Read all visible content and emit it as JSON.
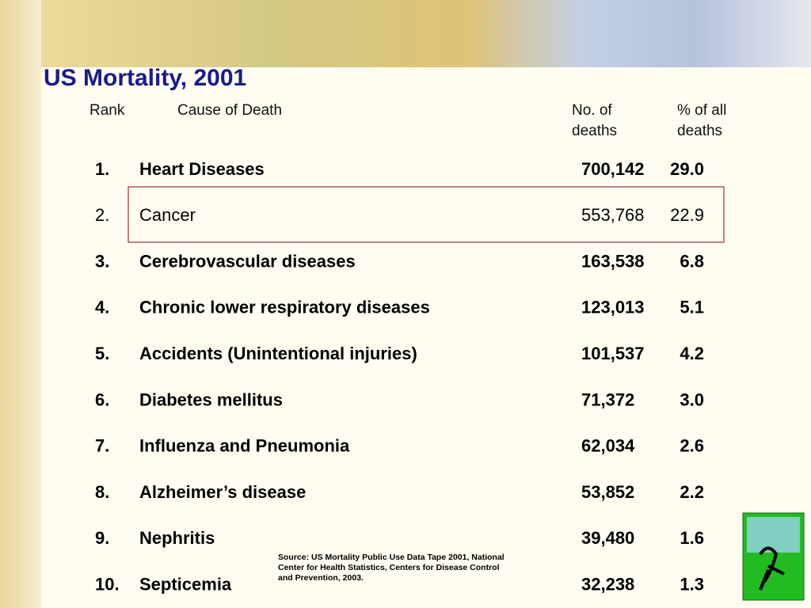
{
  "title": "US Mortality, 2001",
  "table": {
    "headers": [
      [
        "Rank"
      ],
      [
        "Cause of Death"
      ],
      [
        "No. of",
        "deaths"
      ],
      [
        "% of all",
        "deaths"
      ]
    ],
    "rows": [
      [
        "1.",
        "Heart Diseases",
        "700,142",
        "29.0"
      ],
      [
        "2.",
        "Cancer",
        "553,768",
        "22.9"
      ],
      [
        "3.",
        "Cerebrovascular diseases",
        "163,538",
        "6.8"
      ],
      [
        "4.",
        "Chronic lower respiratory diseases",
        "123,013",
        "5.1"
      ],
      [
        "5.",
        "Accidents (Unintentional injuries)",
        "101,537",
        "4.2"
      ],
      [
        "6.",
        "Diabetes mellitus",
        "71,372",
        "3.0"
      ],
      [
        "7.",
        "Influenza and Pneumonia",
        "62,034",
        "2.6"
      ],
      [
        "8.",
        "Alzheimer’s disease",
        "53,852",
        "2.2"
      ],
      [
        "9.",
        "Nephritis",
        "39,480",
        "1.6"
      ],
      [
        "10.",
        "Septicemia",
        "32,238",
        "1.3"
      ]
    ]
  },
  "source": [
    "Source: US Mortality Public Use Data Tape 2001, National",
    "Center for Health Statistics, Centers for Disease Control",
    "and Prevention, 2003."
  ]
}
